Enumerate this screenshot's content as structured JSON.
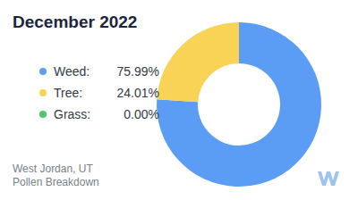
{
  "chart_data": {
    "type": "pie",
    "title": "December 2022",
    "categories": [
      "Weed:",
      "Tree:",
      "Grass:"
    ],
    "values": [
      75.99,
      24.01,
      0.0
    ],
    "value_labels": [
      "75.99%",
      "24.01%",
      "0.00%"
    ],
    "colors": [
      "#5b9cf4",
      "#f8d355",
      "#4cc46a"
    ],
    "legend": "left",
    "annotations": [
      "West Jordan, UT",
      "Pollen Breakdown"
    ]
  }
}
